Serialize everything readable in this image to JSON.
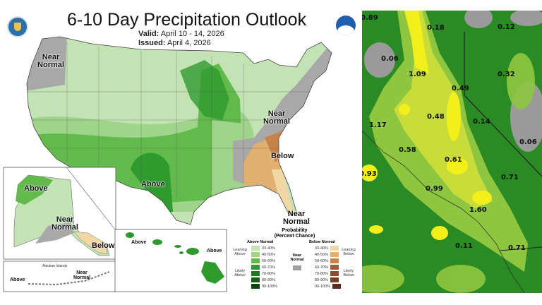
{
  "left_panel": {
    "title": "6-10 Day Precipitation Outlook",
    "valid_label": "Valid:",
    "valid_value": "April 10 - 14, 2026",
    "issued_label": "Issued:",
    "issued_value": "April 4, 2026",
    "logos": [
      "doc-seal-icon",
      "noaa-logo-icon"
    ],
    "region_labels": {
      "nw_near": "Near Normal",
      "texas_above": "Above",
      "mid_atlantic_near": "Near Normal",
      "southeast_below": "Below",
      "florida_near": "Near Normal",
      "alaska_above": "Above",
      "alaska_near": "Near Normal",
      "alaska_below": "Below",
      "aleutian_title": "Aleutian Islands",
      "aleutian_above": "Above",
      "aleutian_near": "Near Normal",
      "hawaii_above_1": "Above",
      "hawaii_above_2": "Above"
    },
    "legend": {
      "title": "Probability",
      "subtitle": "(Percent Chance)",
      "above_header": "Above Normal",
      "below_header": "Below Normal",
      "near_label": "Near Normal",
      "near_color": "#a0a0a0",
      "leaning_above": "Leaning Above",
      "likely_above": "Likely Above",
      "leaning_below": "Leaning Below",
      "likely_below": "Likely Below",
      "above": [
        {
          "range": "33-40%",
          "color": "#c4e3b5"
        },
        {
          "range": "40-50%",
          "color": "#9fd48b"
        },
        {
          "range": "50-60%",
          "color": "#62ba4c"
        },
        {
          "range": "60-70%",
          "color": "#2f9a2e"
        },
        {
          "range": "70-80%",
          "color": "#1a7a1d"
        },
        {
          "range": "80-90%",
          "color": "#145d17"
        },
        {
          "range": "90-100%",
          "color": "#0d4410"
        }
      ],
      "below": [
        {
          "range": "33-40%",
          "color": "#f1d7a3"
        },
        {
          "range": "40-50%",
          "color": "#dfb070"
        },
        {
          "range": "50-60%",
          "color": "#c7844a"
        },
        {
          "range": "60-70%",
          "color": "#a55a35"
        },
        {
          "range": "70-80%",
          "color": "#8f4a30"
        },
        {
          "range": "80-90%",
          "color": "#774021"
        },
        {
          "range": "90-100%",
          "color": "#5a2a1a"
        }
      ]
    }
  },
  "right_panel": {
    "values": [
      "0.89",
      "0.18",
      "0.12",
      "0.06",
      "1.09",
      "0.32",
      "0.49",
      "0.48",
      "0.14",
      "1.17",
      "0.06",
      "0.58",
      "0.61",
      "0.93",
      "0.71",
      "0.99",
      "1.60",
      "0.11",
      "0.71"
    ]
  }
}
